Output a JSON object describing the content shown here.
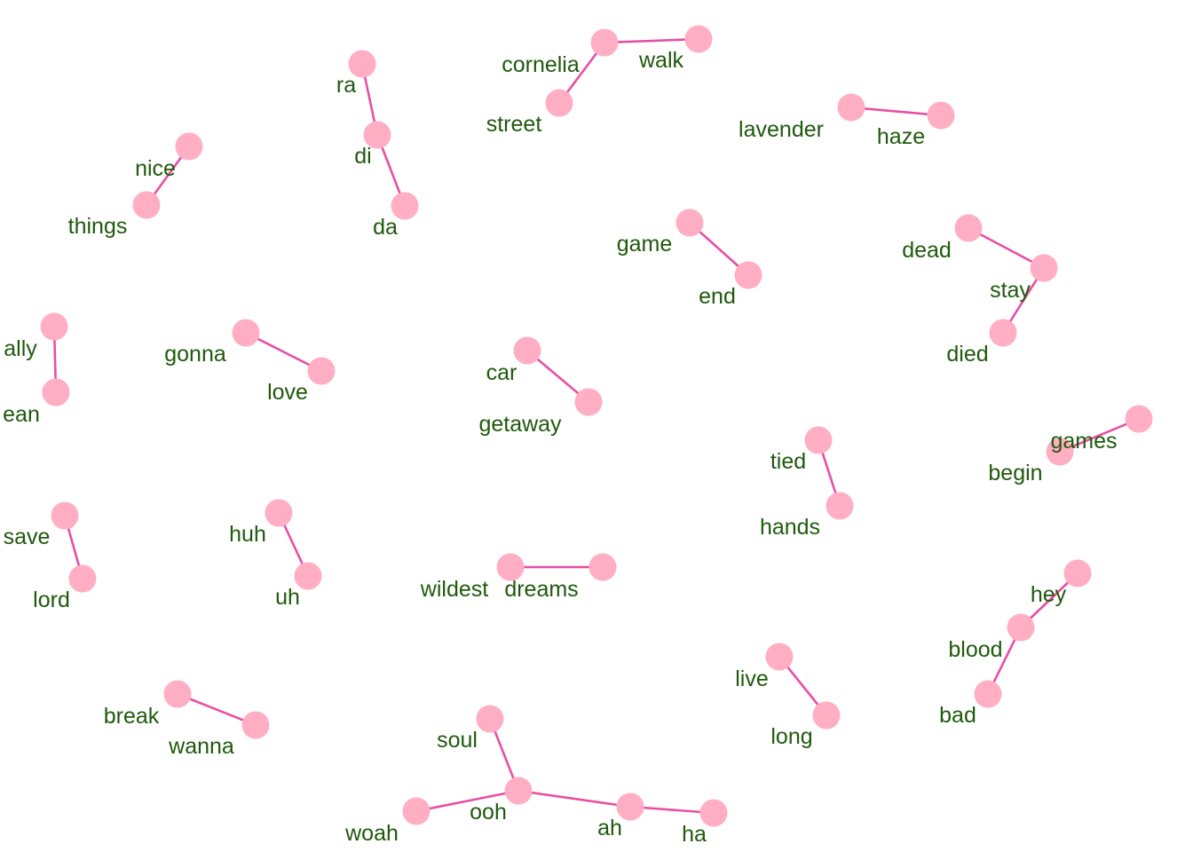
{
  "colors": {
    "edge": "#e94ea5",
    "node": "#ffaec3",
    "label": "#1f5a0c",
    "background": "#ffffff"
  },
  "graph": {
    "nodes": [
      {
        "id": "ra",
        "label": "ra"
      },
      {
        "id": "di",
        "label": "di"
      },
      {
        "id": "da",
        "label": "da"
      },
      {
        "id": "cornelia",
        "label": "cornelia"
      },
      {
        "id": "walk",
        "label": "walk"
      },
      {
        "id": "street",
        "label": "street"
      },
      {
        "id": "lavender",
        "label": "lavender"
      },
      {
        "id": "haze",
        "label": "haze"
      },
      {
        "id": "nice",
        "label": "nice"
      },
      {
        "id": "things",
        "label": "things"
      },
      {
        "id": "game",
        "label": "game"
      },
      {
        "id": "end",
        "label": "end"
      },
      {
        "id": "dead",
        "label": "dead"
      },
      {
        "id": "stay",
        "label": "stay"
      },
      {
        "id": "died",
        "label": "died"
      },
      {
        "id": "ally",
        "label": "ally"
      },
      {
        "id": "ean",
        "label": "ean"
      },
      {
        "id": "gonna",
        "label": "gonna"
      },
      {
        "id": "love",
        "label": "love"
      },
      {
        "id": "car",
        "label": "car"
      },
      {
        "id": "getaway",
        "label": "getaway"
      },
      {
        "id": "tied",
        "label": "tied"
      },
      {
        "id": "hands",
        "label": "hands"
      },
      {
        "id": "games",
        "label": "games"
      },
      {
        "id": "begin",
        "label": "begin"
      },
      {
        "id": "save",
        "label": "save"
      },
      {
        "id": "lord",
        "label": "lord"
      },
      {
        "id": "huh",
        "label": "huh"
      },
      {
        "id": "uh",
        "label": "uh"
      },
      {
        "id": "wildest",
        "label": "wildest"
      },
      {
        "id": "dreams",
        "label": "dreams"
      },
      {
        "id": "hey",
        "label": "hey"
      },
      {
        "id": "blood",
        "label": "blood"
      },
      {
        "id": "bad",
        "label": "bad"
      },
      {
        "id": "live",
        "label": "live"
      },
      {
        "id": "long",
        "label": "long"
      },
      {
        "id": "break",
        "label": "break"
      },
      {
        "id": "wanna",
        "label": "wanna"
      },
      {
        "id": "soul",
        "label": "soul"
      },
      {
        "id": "ooh",
        "label": "ooh"
      },
      {
        "id": "woah",
        "label": "woah"
      },
      {
        "id": "ah",
        "label": "ah"
      },
      {
        "id": "ha",
        "label": "ha"
      }
    ],
    "edges": [
      [
        "ra",
        "di"
      ],
      [
        "di",
        "da"
      ],
      [
        "cornelia",
        "walk"
      ],
      [
        "cornelia",
        "street"
      ],
      [
        "lavender",
        "haze"
      ],
      [
        "nice",
        "things"
      ],
      [
        "game",
        "end"
      ],
      [
        "dead",
        "stay"
      ],
      [
        "stay",
        "died"
      ],
      [
        "ally",
        "ean"
      ],
      [
        "gonna",
        "love"
      ],
      [
        "car",
        "getaway"
      ],
      [
        "tied",
        "hands"
      ],
      [
        "games",
        "begin"
      ],
      [
        "save",
        "lord"
      ],
      [
        "huh",
        "uh"
      ],
      [
        "wildest",
        "dreams"
      ],
      [
        "hey",
        "blood"
      ],
      [
        "blood",
        "bad"
      ],
      [
        "live",
        "long"
      ],
      [
        "break",
        "wanna"
      ],
      [
        "soul",
        "ooh"
      ],
      [
        "ooh",
        "woah"
      ],
      [
        "ooh",
        "ah"
      ],
      [
        "ah",
        "ha"
      ]
    ]
  }
}
